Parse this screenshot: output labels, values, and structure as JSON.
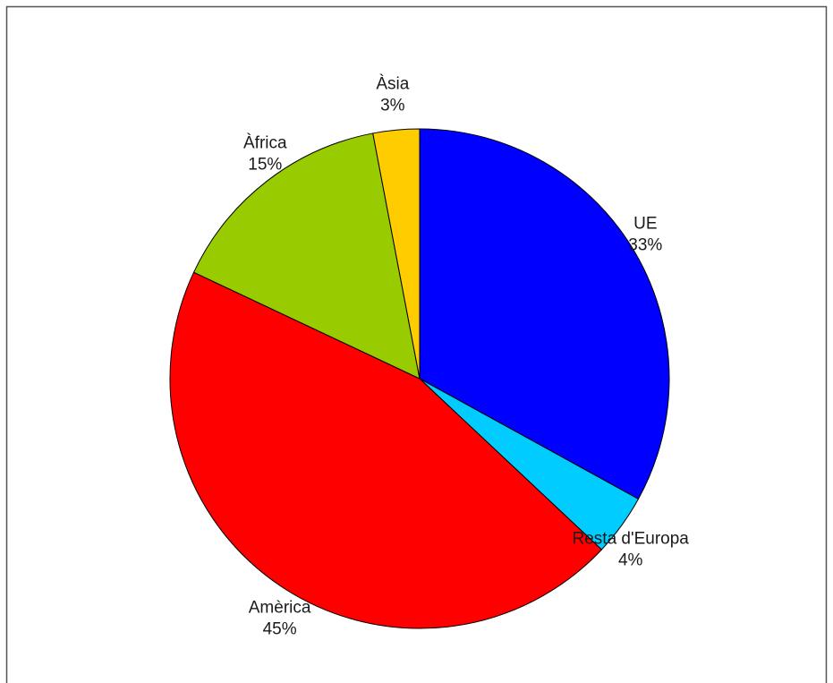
{
  "chart_data": {
    "type": "pie",
    "title": "",
    "start_angle_deg": 90,
    "direction": "clockwise",
    "slices": [
      {
        "label": "UE",
        "value": 33,
        "display_value": "33%",
        "color": "#0000ff"
      },
      {
        "label": "Resta d'Europa",
        "value": 4,
        "display_value": "4%",
        "color": "#00ccff"
      },
      {
        "label": "Amèrica",
        "value": 45,
        "display_value": "45%",
        "color": "#ff0000"
      },
      {
        "label": "Àfrica",
        "value": 15,
        "display_value": "15%",
        "color": "#99cc00"
      },
      {
        "label": "Àsia",
        "value": 3,
        "display_value": "3%",
        "color": "#ffcc00"
      }
    ]
  }
}
